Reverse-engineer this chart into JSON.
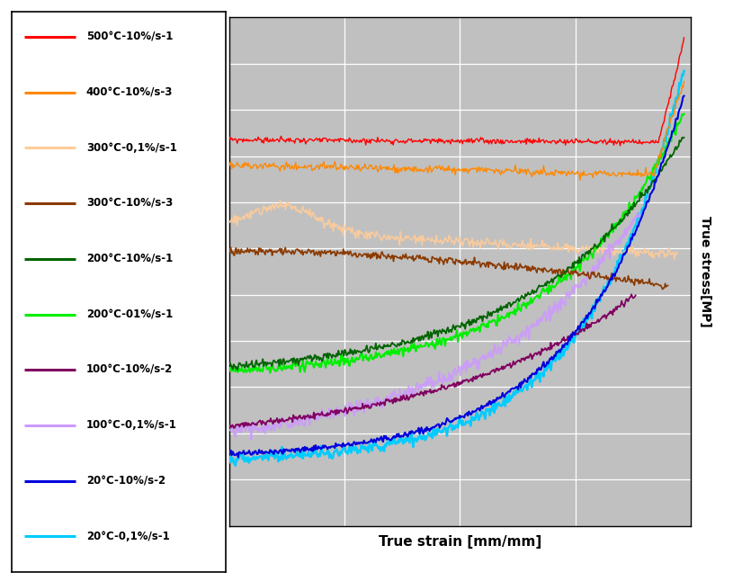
{
  "xlabel": "True strain [mm/mm]",
  "ylabel": "True stress[MP]",
  "plot_bg_color": "#c0c0c0",
  "grid_color": "#ffffff",
  "legend_entries": [
    {
      "label": "500°C-10%/s-1",
      "color": "#ff0000"
    },
    {
      "label": "400°C-10%/s-3",
      "color": "#ff8800"
    },
    {
      "label": "300°C-0,1%/s-1",
      "color": "#ffcc99"
    },
    {
      "label": "300°C-10%/s-3",
      "color": "#8B3A00"
    },
    {
      "label": "200°C-10%/s-1",
      "color": "#006400"
    },
    {
      "label": "200°C-01%/s-1",
      "color": "#00ee00"
    },
    {
      "label": "100°C-10%/s-2",
      "color": "#800060"
    },
    {
      "label": "100°C-0,1%/s-1",
      "color": "#cc99ff"
    },
    {
      "label": "20°C-10%/s-2",
      "color": "#0000dd"
    },
    {
      "label": "20°C-0,1%/s-1",
      "color": "#00ccff"
    }
  ]
}
